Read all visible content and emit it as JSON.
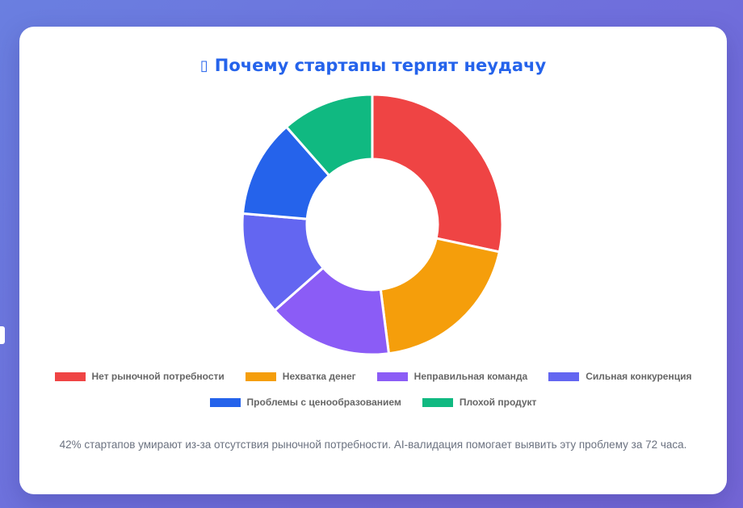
{
  "title": "Почему стартапы терпят неудачу",
  "title_icon": "chart-icon",
  "chart_data": {
    "type": "pie",
    "variant": "doughnut",
    "title": "Почему стартапы терпят неудачу",
    "legend_position": "bottom",
    "categories": [
      "Нет рыночной потребности",
      "Нехватка денег",
      "Неправильная команда",
      "Сильная конкуренция",
      "Проблемы с ценообразованием",
      "Плохой продукт"
    ],
    "values": [
      42,
      29,
      23,
      19,
      18,
      17
    ],
    "colors": [
      "#ef4444",
      "#f59e0b",
      "#8b5cf6",
      "#6366f1",
      "#2563eb",
      "#10b981"
    ]
  },
  "footnote": "42% стартапов умирают из-за отсутствия рыночной потребности. AI-валидация помогает выявить эту проблему за 72 часа."
}
